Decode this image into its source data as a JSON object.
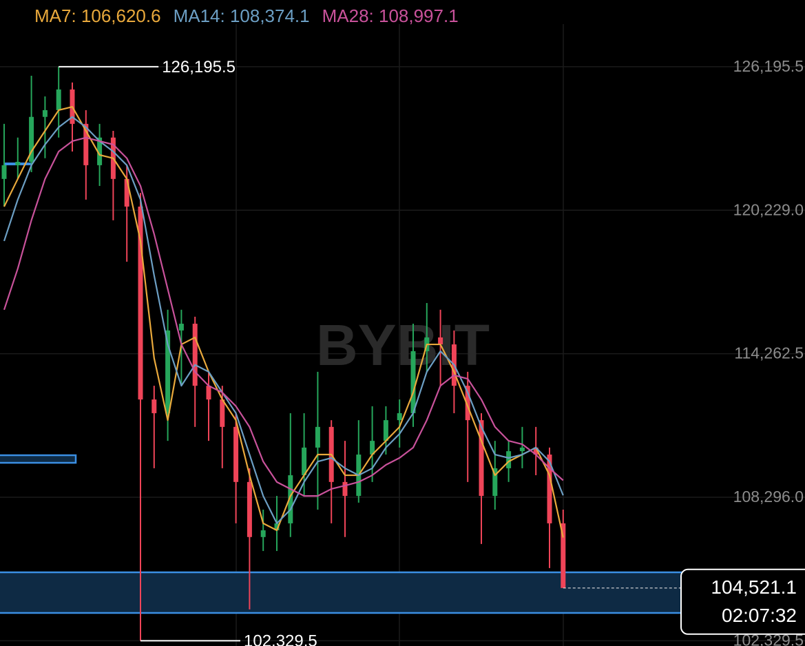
{
  "chart_data": {
    "type": "candlestick",
    "watermark": "BYBIT",
    "up_color": "#26a65b",
    "down_color": "#ef4458",
    "open": [
      121530,
      122100,
      122240,
      124110,
      124390,
      125250,
      123820,
      122100,
      123250,
      121530,
      120380,
      112360,
      111790,
      115230,
      115510,
      112930,
      112360,
      111220,
      108930,
      106640,
      106920,
      107210,
      109210,
      110360,
      111220,
      108930,
      108350,
      110070,
      110640,
      111500,
      111790,
      114370,
      114940,
      114650,
      112930,
      111500,
      108350,
      109500,
      110210,
      110360,
      110070,
      107210
    ],
    "high": [
      123820,
      123250,
      125820,
      124960,
      126195.5,
      125540,
      124390,
      123820,
      123530,
      122100,
      120950,
      112930,
      116090,
      116090,
      115800,
      113510,
      112930,
      111790,
      109500,
      107780,
      108350,
      111790,
      111790,
      113510,
      111500,
      110640,
      111500,
      112080,
      112080,
      112360,
      115510,
      116370,
      116090,
      115230,
      113510,
      111790,
      110640,
      110640,
      111220,
      111220,
      110360,
      107780
    ],
    "low": [
      120380,
      121530,
      121810,
      122390,
      123250,
      122670,
      120670,
      121240,
      119810,
      118090,
      102329.5,
      109500,
      110640,
      112930,
      111220,
      110640,
      109500,
      107210,
      103630,
      106060,
      106060,
      106640,
      108350,
      107780,
      107210,
      106640,
      108070,
      108930,
      110070,
      110360,
      111220,
      113510,
      112930,
      111790,
      108930,
      106350,
      107780,
      108930,
      109500,
      109210,
      105350,
      104521.1
    ],
    "close": [
      122100,
      122240,
      124110,
      124390,
      125250,
      123820,
      122100,
      123250,
      121530,
      120380,
      112360,
      111790,
      115230,
      115510,
      112930,
      112360,
      111220,
      108930,
      106640,
      106920,
      107210,
      109210,
      110360,
      111220,
      108930,
      108350,
      110070,
      110640,
      111500,
      111790,
      114370,
      114940,
      114650,
      112930,
      111500,
      108350,
      109500,
      110210,
      110360,
      110070,
      107210,
      104521.1
    ],
    "series": [
      {
        "name": "MA7: 106,620.6",
        "color": "#e9a93c",
        "values": [
          120380,
          121530,
          122670,
          123530,
          124390,
          124530,
          123530,
          122530,
          122390,
          121530,
          118950,
          114080,
          111500,
          114650,
          114940,
          113510,
          112360,
          111500,
          109210,
          107210,
          106920,
          108350,
          109210,
          110070,
          110070,
          109210,
          109210,
          110070,
          110640,
          111220,
          112650,
          114650,
          114650,
          113510,
          112080,
          110640,
          109210,
          109780,
          110070,
          110360,
          109210,
          106620.6
        ]
      },
      {
        "name": "MA14: 108,374.1",
        "color": "#6c9fc4",
        "values": [
          118950,
          120670,
          122100,
          122960,
          123680,
          124110,
          123680,
          123100,
          122670,
          122100,
          120670,
          117520,
          114650,
          112930,
          113800,
          113510,
          112650,
          111790,
          110070,
          108350,
          107210,
          107780,
          108930,
          109780,
          109930,
          109500,
          109210,
          109500,
          110360,
          110930,
          111790,
          113510,
          114370,
          113800,
          112650,
          111220,
          110070,
          109930,
          110070,
          110360,
          109780,
          108374.1
        ]
      },
      {
        "name": "MA28: 108,997.1",
        "color": "#c9529b",
        "values": [
          116090,
          117800,
          119810,
          121530,
          122670,
          123100,
          123250,
          123100,
          122960,
          122390,
          121240,
          119240,
          116950,
          114650,
          113510,
          112930,
          112650,
          112080,
          111220,
          109780,
          108930,
          108640,
          108350,
          108350,
          108640,
          108780,
          108930,
          109210,
          109640,
          109930,
          110360,
          111500,
          112930,
          113370,
          113220,
          112360,
          111220,
          110640,
          110500,
          110070,
          109500,
          108997.1
        ]
      }
    ],
    "ylim": [
      102110,
      128970
    ],
    "yticks": [
      {
        "value": 126195.5,
        "label": "126,195.5"
      },
      {
        "value": 120229.0,
        "label": "120,229.0"
      },
      {
        "value": 114262.5,
        "label": "114,262.5"
      },
      {
        "value": 108296.0,
        "label": "108,296.0"
      },
      {
        "value": 102329.5,
        "label": "102,329.5"
      }
    ],
    "grid": true,
    "high_marker": {
      "value": 126195.5,
      "label": "126,195.5"
    },
    "low_marker": {
      "value": 102329.5,
      "label": "102,329.5"
    },
    "last_price": {
      "value": 104521.1,
      "label": "104,521.1"
    },
    "countdown": "02:07:32"
  }
}
